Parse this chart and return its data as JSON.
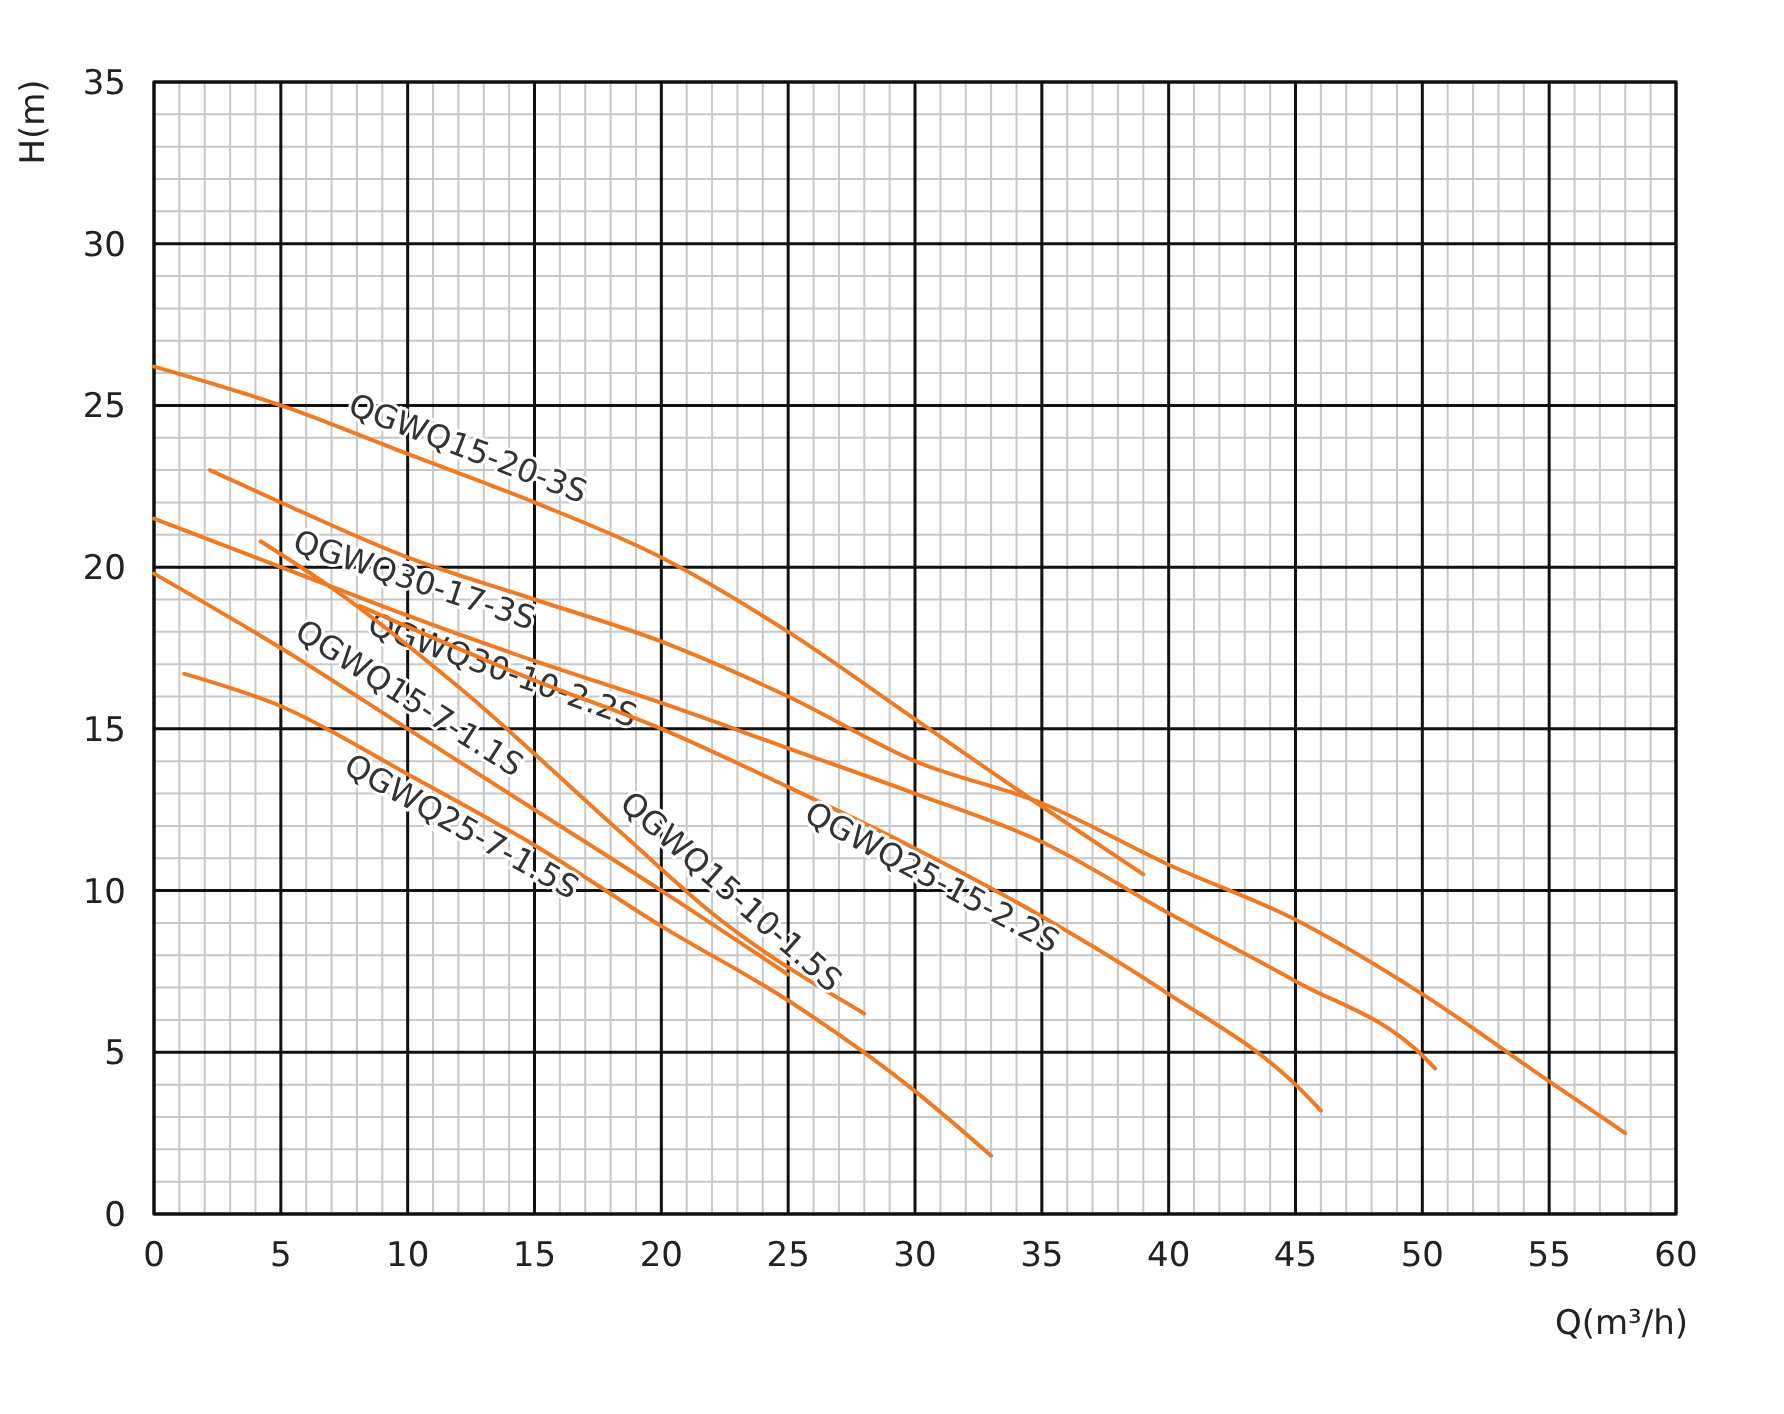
{
  "chart_data": {
    "type": "line",
    "xlabel": "Q(m³/h)",
    "ylabel": "H(m)",
    "xlim": [
      0,
      60
    ],
    "ylim": [
      0,
      35
    ],
    "xticks": [
      0,
      5,
      10,
      15,
      20,
      25,
      30,
      35,
      40,
      45,
      50,
      55,
      60
    ],
    "yticks": [
      0,
      5,
      10,
      15,
      20,
      25,
      30,
      35
    ],
    "grid": true,
    "marker": "none",
    "line_style": "solid",
    "series": [
      {
        "name": "QGWQ15-20-3S",
        "color": "#f07a22",
        "x": [
          0,
          5,
          10,
          15,
          20,
          25,
          30,
          35,
          39
        ],
        "values": [
          26.2,
          25,
          23.5,
          22,
          20.3,
          18,
          15.3,
          12.6,
          10.5
        ]
      },
      {
        "name": "QGWQ30-17-3S",
        "color": "#f07a22",
        "x": [
          2.2,
          5,
          10,
          15,
          20,
          25,
          30,
          35,
          40,
          45,
          50,
          55,
          58
        ],
        "values": [
          23,
          22,
          20.3,
          19,
          17.7,
          16,
          14,
          12.7,
          10.8,
          9.1,
          6.8,
          4.1,
          2.5
        ]
      },
      {
        "name": "QGWQ30-10-2.2S",
        "color": "#f07a22",
        "x": [
          0,
          5,
          10,
          15,
          20,
          25,
          30,
          35,
          40,
          45,
          50,
          50.5
        ],
        "values": [
          21.5,
          20,
          18.5,
          17.1,
          15.8,
          14.4,
          13,
          11.5,
          9.3,
          7.2,
          4.9,
          4.5
        ]
      },
      {
        "name": "QGWQ15-10-1.5S",
        "color": "#f07a22",
        "x": [
          4.2,
          7.3,
          12,
          18.4,
          22,
          28
        ],
        "values": [
          20.8,
          19.2,
          16.3,
          11.8,
          9.3,
          6.2
        ]
      },
      {
        "name": "QGWQ15-7-1.1S",
        "color": "#f07a22",
        "x": [
          0,
          5,
          10,
          15,
          20,
          25
        ],
        "values": [
          19.8,
          17.5,
          15,
          12.5,
          10,
          7.4
        ]
      },
      {
        "name": "QGWQ25-7-1.5S",
        "color": "#f07a22",
        "x": [
          1.2,
          5,
          10,
          15,
          20,
          25,
          30,
          33
        ],
        "values": [
          16.7,
          15.7,
          13.6,
          11.4,
          8.9,
          6.6,
          3.8,
          1.8
        ]
      },
      {
        "name": "QGWQ25-15-2.2S",
        "color": "#f07a22",
        "x": [
          8.1,
          15,
          20,
          25,
          30,
          35,
          40,
          45,
          46
        ],
        "values": [
          18.8,
          16.5,
          15,
          13.2,
          11.3,
          9.2,
          6.8,
          4,
          3.2
        ]
      }
    ]
  }
}
